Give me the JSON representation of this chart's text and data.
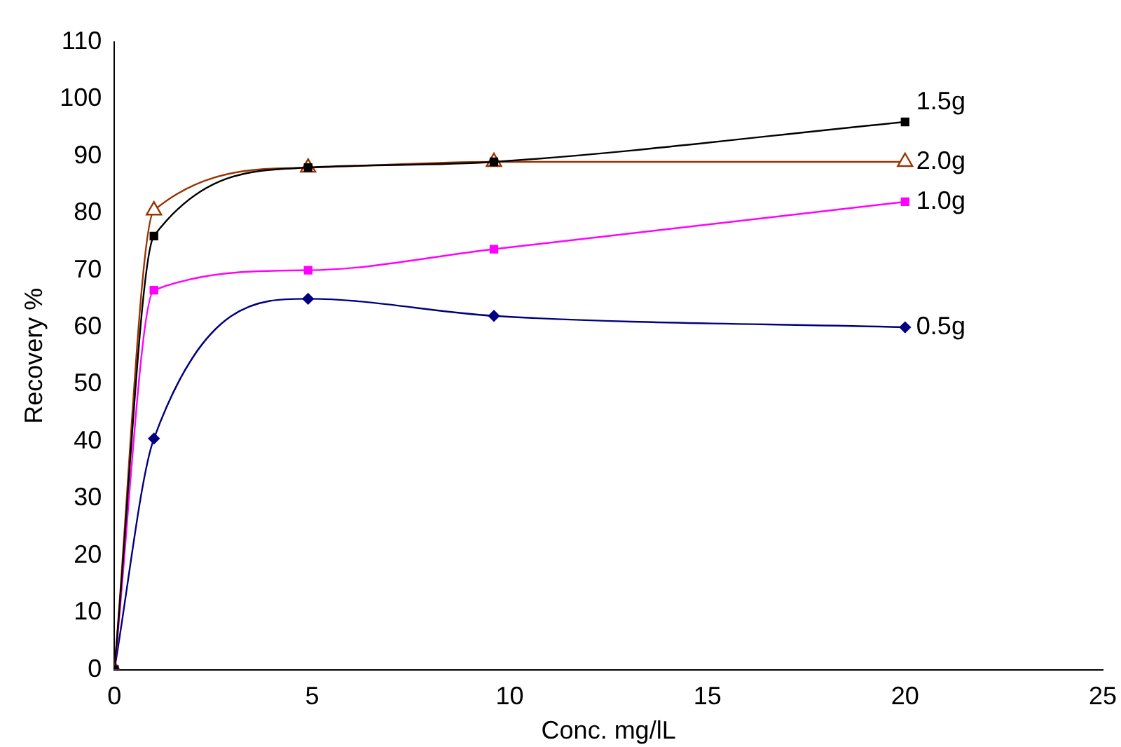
{
  "chart_data": {
    "type": "line",
    "xlabel": "Conc. mg/lL",
    "ylabel": "Recovery %",
    "xlim": [
      0,
      25
    ],
    "xticks": [
      0,
      5,
      10,
      15,
      20,
      25
    ],
    "ylim": [
      0,
      110
    ],
    "yticks": [
      0,
      10,
      20,
      30,
      40,
      50,
      60,
      70,
      80,
      90,
      100,
      110
    ],
    "grid": false,
    "legend": false,
    "x": [
      0,
      1,
      4.9,
      9.6,
      20
    ],
    "series": [
      {
        "name": "1.5g",
        "color": "#000000",
        "marker": "square",
        "values": [
          0,
          76,
          88,
          89,
          96
        ]
      },
      {
        "name": "2.0g",
        "color": "#993300",
        "marker": "triangle",
        "values": [
          0,
          80.5,
          88,
          89,
          89
        ]
      },
      {
        "name": "1.0g",
        "color": "#ff00ff",
        "marker": "square",
        "values": [
          0,
          66.5,
          70,
          73.7,
          82
        ]
      },
      {
        "name": "0.5g",
        "color": "#000080",
        "marker": "diamond",
        "values": [
          0,
          40.5,
          65,
          62,
          60
        ]
      }
    ]
  }
}
